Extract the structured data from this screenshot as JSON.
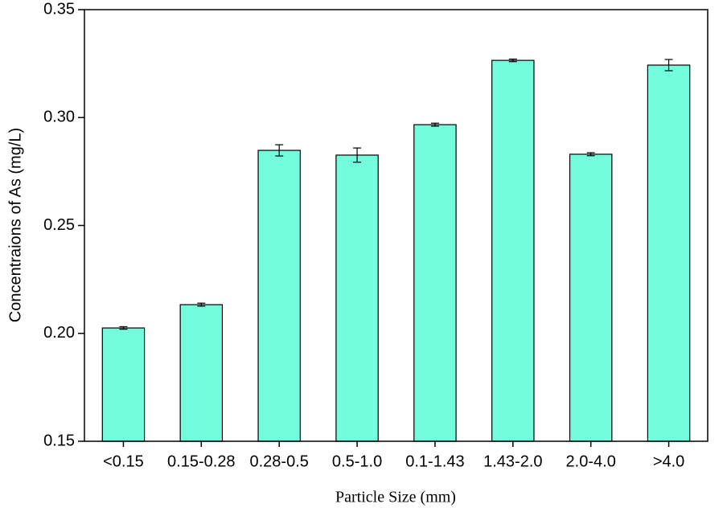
{
  "chart_data": {
    "type": "bar",
    "x_label": "Particle Size (mm)",
    "y_label": "Concentraions of As (mg/L)",
    "categories": [
      "<0.15",
      "0.15-0.28",
      "0.28-0.5",
      "0.5-1.0",
      "0.1-1.43",
      "1.43-2.0",
      "2.0-4.0",
      ">4.0"
    ],
    "values": [
      0.2025,
      0.2133,
      0.2848,
      0.2826,
      0.2967,
      0.3265,
      0.283,
      0.3243
    ],
    "errors": [
      0.0006,
      0.0007,
      0.0026,
      0.0033,
      0.0007,
      0.0006,
      0.0007,
      0.0026
    ],
    "color": "#74fddd",
    "ylim": [
      0.15,
      0.35
    ],
    "yticks": [
      0.15,
      {
        "value": 0.2,
        "label": "0.20"
      },
      0.25,
      {
        "value": 0.3,
        "label": "0.30"
      },
      0.35
    ]
  }
}
